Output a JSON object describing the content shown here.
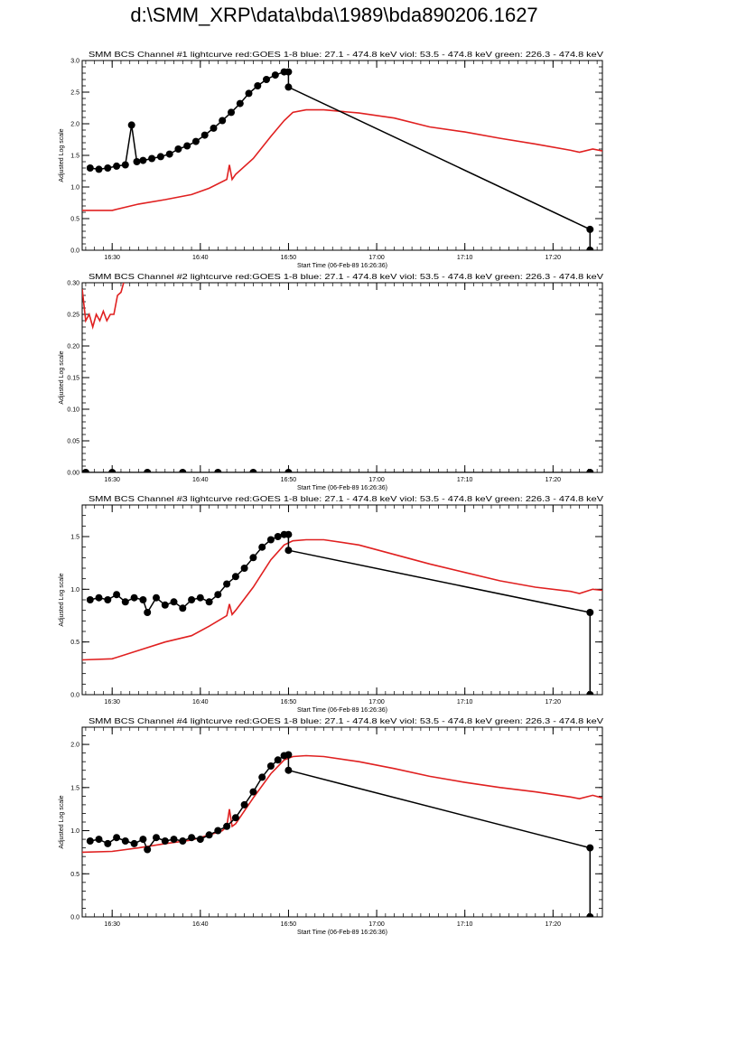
{
  "page": {
    "title": "d:\\SMM_XRP\\data\\bda\\1989\\bda890206.1627"
  },
  "chart_data": [
    {
      "type": "line",
      "title": "SMM BCS Channel #1 lightcurve  red:GOES 1-8  blue: 27.1 - 474.8 keV  viol: 53.5 - 474.8 keV  green: 226.3 - 474.8 keV",
      "xlabel": "Start Time (06-Feb-89 16:26:36)",
      "ylabel": "Adjusted Log scale",
      "xlim": [
        -3.4,
        55.6
      ],
      "ylim": [
        0,
        3.0
      ],
      "yticks": [
        0,
        0.5,
        1.0,
        1.5,
        2.0,
        2.5,
        3.0
      ],
      "ytick_labels": [
        "0.0",
        "0.5",
        "1.0",
        "1.5",
        "2.0",
        "2.5",
        "3.0"
      ],
      "xtick_labels": [
        "16:30",
        "16:40",
        "16:50",
        "17:00",
        "17:10",
        "17:20"
      ],
      "xtick_minutes": [
        0,
        10,
        20,
        30,
        40,
        50
      ],
      "grid": false,
      "series": [
        {
          "color": "#e02020",
          "x": [
            -3.4,
            0,
            3,
            6,
            9,
            11,
            13,
            13.3,
            13.6,
            14,
            16,
            18,
            19.5,
            20.5,
            22,
            24,
            28,
            32,
            36,
            40,
            44,
            48,
            52,
            53,
            54.5,
            55.6
          ],
          "y": [
            0.63,
            0.63,
            0.73,
            0.8,
            0.88,
            0.98,
            1.12,
            1.35,
            1.12,
            1.2,
            1.45,
            1.8,
            2.05,
            2.18,
            2.22,
            2.22,
            2.17,
            2.09,
            1.95,
            1.87,
            1.77,
            1.68,
            1.58,
            1.55,
            1.6,
            1.57
          ]
        },
        {
          "color": "#000000",
          "marker": "circle",
          "x": [
            -2.5,
            -1.5,
            -0.5,
            0.5,
            1.5,
            2.2,
            2.8,
            3.5,
            4.5,
            5.5,
            6.5,
            7.5,
            8.5,
            9.5,
            10.5,
            11.5,
            12.5,
            13.5,
            14.5,
            15.5,
            16.5,
            17.5,
            18.5,
            19.5,
            20.0,
            20.0,
            54.2,
            54.2
          ],
          "y": [
            1.3,
            1.28,
            1.3,
            1.33,
            1.35,
            1.98,
            1.4,
            1.42,
            1.45,
            1.48,
            1.52,
            1.6,
            1.65,
            1.72,
            1.82,
            1.93,
            2.05,
            2.18,
            2.32,
            2.48,
            2.6,
            2.7,
            2.77,
            2.82,
            2.82,
            2.58,
            0.33,
            0.0
          ]
        }
      ]
    },
    {
      "type": "line",
      "title": "SMM BCS Channel #2 lightcurve  red:GOES 1-8  blue: 27.1 - 474.8 keV  viol: 53.5 - 474.8 keV  green: 226.3 - 474.8 keV",
      "xlabel": "Start Time (06-Feb-89 16:26:36)",
      "ylabel": "Adjusted Log scale",
      "xlim": [
        -3.4,
        55.6
      ],
      "ylim": [
        0,
        0.3
      ],
      "yticks": [
        0,
        0.05,
        0.1,
        0.15,
        0.2,
        0.25,
        0.3
      ],
      "ytick_labels": [
        "0.00",
        "0.05",
        "0.10",
        "0.15",
        "0.20",
        "0.25",
        "0.30"
      ],
      "xtick_labels": [
        "16:30",
        "16:40",
        "16:50",
        "17:00",
        "17:10",
        "17:20"
      ],
      "xtick_minutes": [
        0,
        10,
        20,
        30,
        40,
        50
      ],
      "grid": false,
      "series": [
        {
          "color": "#e02020",
          "x": [
            -3.4,
            -3.0,
            -2.6,
            -2.2,
            -1.8,
            -1.4,
            -1.0,
            -0.6,
            -0.2,
            0.2,
            0.6,
            1.0,
            1.3
          ],
          "y": [
            0.29,
            0.24,
            0.25,
            0.23,
            0.25,
            0.24,
            0.255,
            0.24,
            0.25,
            0.25,
            0.28,
            0.285,
            0.3
          ]
        },
        {
          "color": "#000000",
          "marker": "circle",
          "x": [
            -3.0,
            0,
            4,
            8,
            12,
            16,
            20,
            54.2
          ],
          "y": [
            0,
            0,
            0,
            0,
            0,
            0,
            0,
            0
          ]
        }
      ]
    },
    {
      "type": "line",
      "title": "SMM BCS Channel #3 lightcurve  red:GOES 1-8  blue: 27.1 - 474.8 keV  viol: 53.5 - 474.8 keV  green: 226.3 - 474.8 keV",
      "xlabel": "Start Time (06-Feb-89 16:26:36)",
      "ylabel": "Adjusted Log scale",
      "xlim": [
        -3.4,
        55.6
      ],
      "ylim": [
        0,
        1.8
      ],
      "yticks": [
        0,
        0.5,
        1.0,
        1.5
      ],
      "ytick_labels": [
        "0.0",
        "0.5",
        "1.0",
        "1.5"
      ],
      "xtick_labels": [
        "16:30",
        "16:40",
        "16:50",
        "17:00",
        "17:10",
        "17:20"
      ],
      "xtick_minutes": [
        0,
        10,
        20,
        30,
        40,
        50
      ],
      "grid": false,
      "series": [
        {
          "color": "#e02020",
          "x": [
            -3.4,
            0,
            3,
            6,
            9,
            11,
            13,
            13.3,
            13.6,
            14,
            16,
            18,
            19.5,
            20.5,
            22,
            24,
            28,
            32,
            36,
            40,
            44,
            48,
            52,
            53,
            54.5,
            55.6
          ],
          "y": [
            0.33,
            0.34,
            0.42,
            0.5,
            0.56,
            0.65,
            0.75,
            0.86,
            0.76,
            0.8,
            1.02,
            1.28,
            1.42,
            1.46,
            1.47,
            1.47,
            1.42,
            1.33,
            1.24,
            1.16,
            1.08,
            1.02,
            0.98,
            0.96,
            1.0,
            0.99
          ]
        },
        {
          "color": "#000000",
          "marker": "circle",
          "x": [
            -2.5,
            -1.5,
            -0.5,
            0.5,
            1.5,
            2.5,
            3.5,
            4.0,
            5.0,
            6.0,
            7.0,
            8.0,
            9.0,
            10.0,
            11.0,
            12.0,
            13.0,
            14.0,
            15.0,
            16.0,
            17.0,
            18.0,
            18.8,
            19.5,
            20.0,
            20.0,
            54.2,
            54.2
          ],
          "y": [
            0.9,
            0.92,
            0.9,
            0.95,
            0.88,
            0.92,
            0.9,
            0.78,
            0.92,
            0.85,
            0.88,
            0.82,
            0.9,
            0.92,
            0.88,
            0.95,
            1.05,
            1.12,
            1.2,
            1.3,
            1.4,
            1.47,
            1.5,
            1.52,
            1.52,
            1.37,
            0.78,
            0.0
          ]
        }
      ]
    },
    {
      "type": "line",
      "title": "SMM BCS Channel #4 lightcurve  red:GOES 1-8  blue: 27.1 - 474.8 keV  viol: 53.5 - 474.8 keV  green: 226.3 - 474.8 keV",
      "xlabel": "Start Time (06-Feb-89 16:26:36)",
      "ylabel": "Adjusted Log scale",
      "xlim": [
        -3.4,
        55.6
      ],
      "ylim": [
        0,
        2.2
      ],
      "yticks": [
        0,
        0.5,
        1.0,
        1.5,
        2.0
      ],
      "ytick_labels": [
        "0.0",
        "0.5",
        "1.0",
        "1.5",
        "2.0"
      ],
      "xtick_labels": [
        "16:30",
        "16:40",
        "16:50",
        "17:00",
        "17:10",
        "17:20"
      ],
      "xtick_minutes": [
        0,
        10,
        20,
        30,
        40,
        50
      ],
      "grid": false,
      "series": [
        {
          "color": "#e02020",
          "x": [
            -3.4,
            0,
            3,
            6,
            9,
            11,
            12.5,
            13,
            13.3,
            13.6,
            14,
            16,
            18,
            19.5,
            20.5,
            22,
            24,
            28,
            32,
            36,
            40,
            44,
            48,
            52,
            53,
            54.5,
            55.6
          ],
          "y": [
            0.75,
            0.76,
            0.8,
            0.85,
            0.89,
            0.95,
            1.0,
            1.05,
            1.25,
            1.05,
            1.08,
            1.38,
            1.66,
            1.82,
            1.86,
            1.87,
            1.86,
            1.8,
            1.72,
            1.63,
            1.56,
            1.5,
            1.45,
            1.39,
            1.37,
            1.41,
            1.38
          ]
        },
        {
          "color": "#000000",
          "marker": "circle",
          "x": [
            -2.5,
            -1.5,
            -0.5,
            0.5,
            1.5,
            2.5,
            3.5,
            4.0,
            5.0,
            6.0,
            7.0,
            8.0,
            9.0,
            10.0,
            11.0,
            12.0,
            13.0,
            14.0,
            15.0,
            16.0,
            17.0,
            18.0,
            18.8,
            19.5,
            20.0,
            20.0,
            54.2,
            54.2
          ],
          "y": [
            0.88,
            0.9,
            0.85,
            0.92,
            0.88,
            0.85,
            0.9,
            0.78,
            0.92,
            0.88,
            0.9,
            0.88,
            0.92,
            0.9,
            0.95,
            1.0,
            1.05,
            1.15,
            1.3,
            1.45,
            1.62,
            1.75,
            1.82,
            1.87,
            1.88,
            1.7,
            0.8,
            0.0
          ]
        }
      ]
    }
  ]
}
